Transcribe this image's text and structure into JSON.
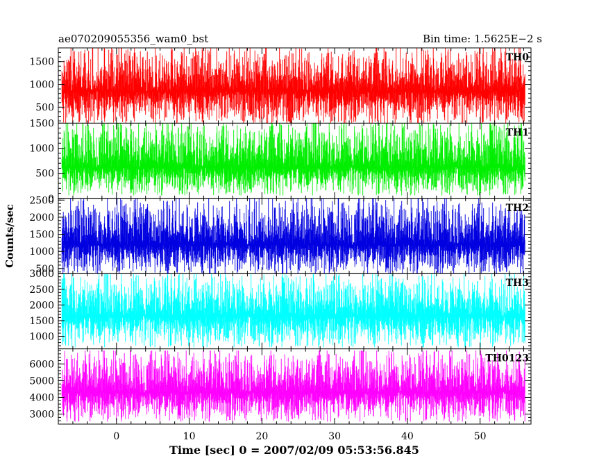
{
  "chart_data": {
    "type": "line",
    "title_left": "ae070209055356_wam0_bst",
    "title_right": "Bin time: 1.5625E−2 s",
    "xlabel": "Time [sec] 0 = 2007/02/09 05:53:56.845",
    "ylabel": "Counts/sec",
    "xlim": [
      -8,
      57
    ],
    "x_ticks": [
      0,
      10,
      20,
      30,
      40,
      50
    ],
    "grid": false,
    "panels": [
      {
        "name": "TH0",
        "color": "#ff0000",
        "ylim": [
          150,
          1800
        ],
        "yticks": [
          500,
          1000,
          1500
        ],
        "mean": 850,
        "low": 120,
        "high": 1800,
        "burst_prob": 0.06
      },
      {
        "name": "TH1",
        "color": "#00ee00",
        "ylim": [
          0,
          1500
        ],
        "yticks": [
          0,
          500,
          1000,
          1500
        ],
        "mean": 620,
        "low": 60,
        "high": 1550,
        "burst_prob": 0.05
      },
      {
        "name": "TH2",
        "color": "#0000e0",
        "ylim": [
          350,
          2550
        ],
        "yticks": [
          500,
          1000,
          1500,
          2000,
          2500
        ],
        "mean": 1200,
        "low": 330,
        "high": 2550,
        "burst_prob": 0.05
      },
      {
        "name": "TH3",
        "color": "#00ffff",
        "ylim": [
          600,
          3000
        ],
        "yticks": [
          1000,
          1500,
          2000,
          2500,
          3000
        ],
        "mean": 1650,
        "low": 650,
        "high": 3000,
        "burst_prob": 0.05
      },
      {
        "name": "TH0123",
        "color": "#ff00ff",
        "ylim": [
          2400,
          6900
        ],
        "yticks": [
          3000,
          4000,
          5000,
          6000
        ],
        "mean": 4300,
        "low": 2550,
        "high": 6800,
        "burst_prob": 0.05
      }
    ],
    "series_start": -7.5,
    "series_end": 56.2
  }
}
